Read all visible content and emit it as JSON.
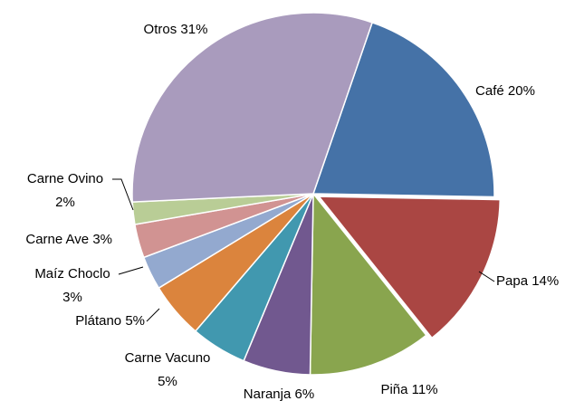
{
  "chart_data": {
    "type": "pie",
    "categories": [
      "Café",
      "Papa",
      "Piña",
      "Naranja",
      "Carne Vacuno",
      "Plátano",
      "Maíz Choclo",
      "Carne Ave",
      "Carne Ovino",
      "Otros"
    ],
    "values": [
      20,
      14,
      11,
      6,
      5,
      5,
      3,
      3,
      2,
      31
    ],
    "value_labels": [
      "20%",
      "14%",
      "11%",
      "6%",
      "5%",
      "5%",
      "3%",
      "3%",
      "2%",
      "31%"
    ],
    "colors": [
      "#4572a7",
      "#aa4643",
      "#89a54e",
      "#71588f",
      "#4198af",
      "#db843d",
      "#93a9cf",
      "#d19392",
      "#b9cd96",
      "#a99bbd"
    ]
  }
}
